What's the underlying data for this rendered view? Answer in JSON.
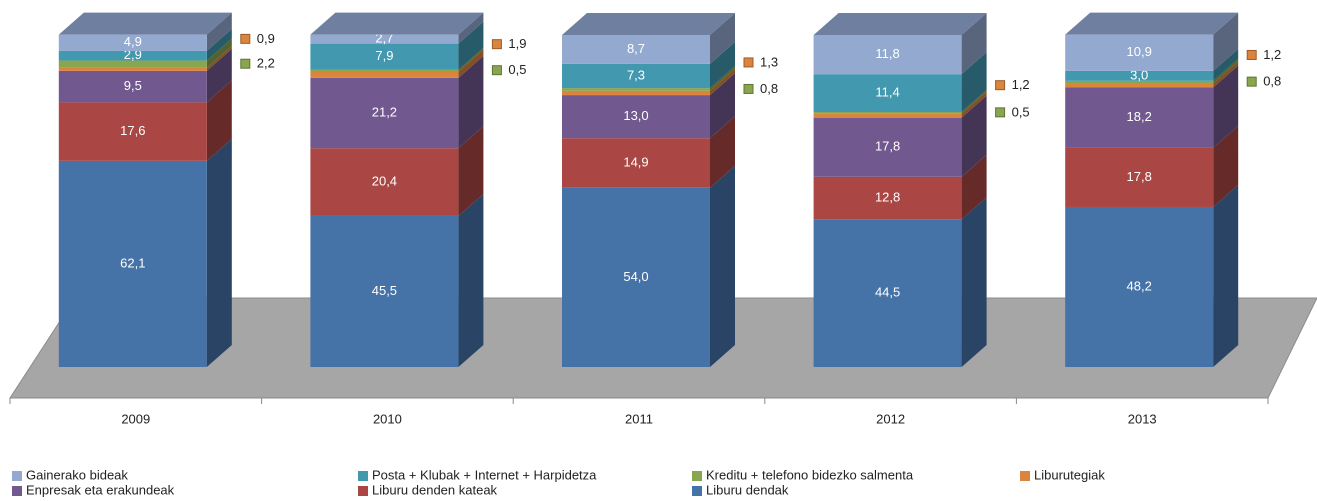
{
  "chart_data": {
    "type": "bar3d_stacked",
    "categories": [
      "2009",
      "2010",
      "2011",
      "2012",
      "2013"
    ],
    "series": [
      {
        "name": "Liburu dendak",
        "color": "#4572a7",
        "values": [
          62.1,
          45.5,
          54.0,
          44.5,
          48.2
        ],
        "value_labels": [
          "62,1",
          "45,5",
          "54,0",
          "44,5",
          "48,2"
        ]
      },
      {
        "name": "Liburu denden kateak",
        "color": "#aa4643",
        "values": [
          17.6,
          20.4,
          14.9,
          12.8,
          17.8
        ],
        "value_labels": [
          "17,6",
          "20,4",
          "14,9",
          "12,8",
          "17,8"
        ]
      },
      {
        "name": "Enpresak eta erakundeak",
        "color": "#71588f",
        "values": [
          9.5,
          21.2,
          13.0,
          17.8,
          18.2
        ],
        "value_labels": [
          "9,5",
          "21,2",
          "13,0",
          "17,8",
          "18,2"
        ]
      },
      {
        "name": "Liburutegiak",
        "color": "#db843d",
        "values": [
          0.9,
          1.9,
          1.3,
          1.2,
          1.2
        ],
        "value_labels": [
          "0,9",
          "1,9",
          "1,3",
          "1,2",
          "1,2"
        ]
      },
      {
        "name": "Kreditu + telefono bidezko salmenta",
        "color": "#89a54e",
        "values": [
          2.2,
          0.5,
          0.8,
          0.5,
          0.8
        ],
        "value_labels": [
          "2,2",
          "0,5",
          "0,8",
          "0,5",
          "0,8"
        ]
      },
      {
        "name": "Posta + Klubak + Internet + Harpidetza",
        "color": "#4198af",
        "values": [
          2.9,
          7.9,
          7.3,
          11.4,
          3.0
        ],
        "value_labels": [
          "2,9",
          "7,9",
          "7,3",
          "11,4",
          "3,0"
        ]
      },
      {
        "name": "Gainerako bideak",
        "color": "#93a9cf",
        "values": [
          4.9,
          2.7,
          8.7,
          11.8,
          10.9
        ],
        "value_labels": [
          "4,9",
          "2,7",
          "8,7",
          "11,8",
          "10,9"
        ]
      }
    ]
  }
}
